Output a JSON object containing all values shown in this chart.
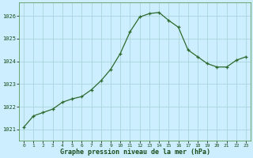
{
  "hours": [
    0,
    1,
    2,
    3,
    4,
    5,
    6,
    7,
    8,
    9,
    10,
    11,
    12,
    13,
    14,
    15,
    16,
    17,
    18,
    19,
    20,
    21,
    22,
    23
  ],
  "pressure": [
    1021.1,
    1021.6,
    1021.75,
    1021.9,
    1022.2,
    1022.35,
    1022.45,
    1022.75,
    1023.15,
    1023.65,
    1024.35,
    1025.3,
    1025.95,
    1026.1,
    1026.15,
    1025.8,
    1025.5,
    1024.5,
    1024.2,
    1023.9,
    1023.75,
    1023.75,
    1024.05,
    1024.2
  ],
  "ylim": [
    1020.5,
    1026.6
  ],
  "yticks": [
    1021,
    1022,
    1023,
    1024,
    1025,
    1026
  ],
  "xticks": [
    0,
    1,
    2,
    3,
    4,
    5,
    6,
    7,
    8,
    9,
    10,
    11,
    12,
    13,
    14,
    15,
    16,
    17,
    18,
    19,
    20,
    21,
    22,
    23
  ],
  "line_color": "#2d6a2d",
  "marker_color": "#2d6a2d",
  "bg_color": "#cceeff",
  "grid_color": "#aad4dc",
  "xlabel": "Graphe pression niveau de la mer (hPa)"
}
